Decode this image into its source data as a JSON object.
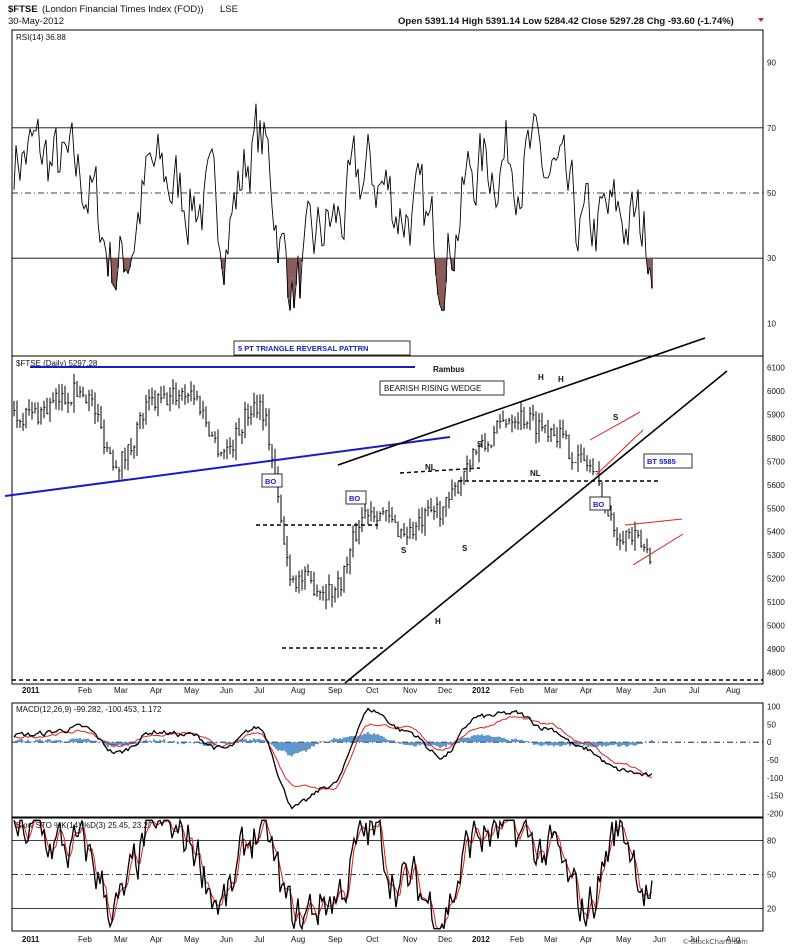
{
  "header": {
    "symbol": "$FTSE",
    "name": "(London Financial Times Index (FOD))",
    "exchange": "LSE",
    "date": "30-May-2012",
    "ohlc": "Open 5391.14  High 5391.14  Low 5284.42  Close 5297.28  Chg -93.60 (-1.74%)",
    "watermark": "© StockCharts.com"
  },
  "colors": {
    "price": "#000000",
    "trend_blue": "#1a1acc",
    "channel_red": "#e02020",
    "rsi_fill": "#8b5a5a",
    "macd_hist": "#3a7fc0",
    "signal_red": "#e02020",
    "grid": "#000000"
  },
  "chart_data": [
    {
      "type": "line",
      "panel": "rsi",
      "legend": "RSI(14) 36.88",
      "ylim": [
        0,
        100
      ],
      "yticks": [
        10,
        30,
        50,
        70,
        90
      ],
      "reference_lines": [
        30,
        50,
        70
      ],
      "x": [
        "2011-01",
        "2011-02",
        "2011-03",
        "2011-04",
        "2011-05",
        "2011-06",
        "2011-07",
        "2011-08",
        "2011-09",
        "2011-10",
        "2011-11",
        "2011-12",
        "2012-01",
        "2012-02",
        "2012-03",
        "2012-04",
        "2012-05",
        "2012-06"
      ],
      "values": [
        62,
        54,
        28,
        55,
        50,
        42,
        66,
        22,
        40,
        55,
        45,
        33,
        58,
        63,
        55,
        37,
        42,
        36.88
      ]
    },
    {
      "type": "line",
      "panel": "price",
      "legend": "$FTSE (Daily) 5297.28",
      "ylim": [
        4750,
        6150
      ],
      "yticks": [
        4800,
        4900,
        5000,
        5100,
        5200,
        5300,
        5400,
        5500,
        5600,
        5700,
        5800,
        5900,
        6000,
        6100
      ],
      "x": [
        "2011-01",
        "2011-02",
        "2011-03",
        "2011-04",
        "2011-05",
        "2011-06",
        "2011-07",
        "2011-08",
        "2011-09",
        "2011-10",
        "2011-11",
        "2011-12",
        "2012-01",
        "2012-02",
        "2012-03",
        "2012-04",
        "2012-05",
        "2012-06"
      ],
      "values": [
        5900,
        6000,
        5700,
        5950,
        6000,
        5750,
        5950,
        5200,
        5150,
        5500,
        5400,
        5500,
        5750,
        5900,
        5850,
        5700,
        5400,
        5297.28
      ],
      "annotations": [
        "5 PT TRIANGLE REVERSAL PATTRN",
        "Rambus",
        "BEARISH RISING WEDGE",
        "BO",
        "BO",
        "BO",
        "BT 5585",
        "H",
        "H",
        "H",
        "S",
        "S",
        "S",
        "S",
        "NL",
        "NL"
      ]
    },
    {
      "type": "line",
      "panel": "macd",
      "legend": "MACD(12,26,9) -99.282, -100.453, 1.172",
      "ylim": [
        -210,
        110
      ],
      "yticks": [
        100,
        50,
        0,
        -50,
        -100,
        -150,
        -200
      ],
      "series": [
        {
          "name": "MACD",
          "values": [
            20,
            40,
            -30,
            30,
            20,
            -20,
            40,
            -180,
            -120,
            90,
            30,
            -40,
            70,
            80,
            40,
            -20,
            -80,
            -99.282
          ]
        },
        {
          "name": "Signal",
          "values": [
            15,
            30,
            -10,
            20,
            25,
            -10,
            25,
            -120,
            -130,
            50,
            40,
            -20,
            40,
            70,
            50,
            0,
            -60,
            -100.453
          ]
        }
      ]
    },
    {
      "type": "line",
      "panel": "stochastic",
      "legend": "Slow STO %K(14) %D(3) 25.45, 23.27",
      "ylim": [
        0,
        100
      ],
      "yticks": [
        20,
        50,
        80
      ],
      "series": [
        {
          "name": "%K",
          "values": [
            85,
            70,
            20,
            90,
            80,
            25,
            90,
            10,
            30,
            85,
            40,
            20,
            85,
            85,
            70,
            20,
            90,
            25.45
          ]
        },
        {
          "name": "%D",
          "values": [
            80,
            72,
            25,
            85,
            82,
            30,
            85,
            15,
            28,
            80,
            45,
            25,
            80,
            84,
            72,
            25,
            85,
            23.27
          ]
        }
      ]
    }
  ],
  "months": [
    "2011",
    "Feb",
    "Mar",
    "Apr",
    "May",
    "Jun",
    "Jul",
    "Aug",
    "Sep",
    "Oct",
    "Nov",
    "Dec",
    "2012",
    "Feb",
    "Mar",
    "Apr",
    "May",
    "Jun",
    "Jul",
    "Aug"
  ]
}
